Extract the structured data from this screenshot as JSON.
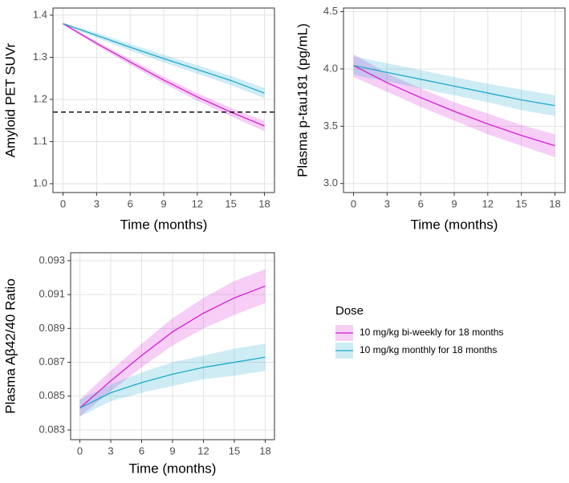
{
  "chart_data": [
    {
      "type": "line",
      "x_label": "Time (months)",
      "y_label": "Amyloid PET SUVr",
      "x": [
        0,
        3,
        6,
        9,
        12,
        15,
        18
      ],
      "xlim": [
        -0.9,
        18.9
      ],
      "xticks": [
        0,
        3,
        6,
        9,
        12,
        15,
        18
      ],
      "ylim": [
        0.979,
        1.417
      ],
      "yticks": [
        {
          "value": 1.0,
          "label": "1.0"
        },
        1.1,
        1.2,
        1.3,
        1.4
      ],
      "grid": true,
      "hline": 1.17,
      "series": [
        {
          "color": "#d41fd4",
          "values": [
            1.38,
            1.333,
            1.289,
            1.246,
            1.206,
            1.17,
            1.137
          ],
          "upper": [
            1.382,
            1.338,
            1.296,
            1.254,
            1.215,
            1.18,
            1.149
          ],
          "lower": [
            1.378,
            1.328,
            1.282,
            1.238,
            1.197,
            1.16,
            1.125
          ]
        },
        {
          "color": "#1fa9cc",
          "values": [
            1.38,
            1.352,
            1.324,
            1.297,
            1.271,
            1.245,
            1.215
          ],
          "upper": [
            1.382,
            1.358,
            1.332,
            1.306,
            1.281,
            1.256,
            1.227
          ],
          "lower": [
            1.378,
            1.346,
            1.316,
            1.288,
            1.261,
            1.234,
            1.203
          ]
        }
      ]
    },
    {
      "type": "line",
      "x_label": "Time (months)",
      "y_label": "Plasma p-tau181 (pg/mL)",
      "x": [
        0,
        3,
        6,
        9,
        12,
        15,
        18
      ],
      "xlim": [
        -0.9,
        18.9
      ],
      "xticks": [
        0,
        3,
        6,
        9,
        12,
        15,
        18
      ],
      "ylim": [
        2.921,
        4.532
      ],
      "yticks": [
        {
          "value": 3.0,
          "label": "3.0"
        },
        3.5,
        {
          "value": 4.0,
          "label": "4.0"
        },
        4.5
      ],
      "grid": true,
      "series": [
        {
          "color": "#d41fd4",
          "values": [
            4.03,
            3.88,
            3.75,
            3.63,
            3.52,
            3.42,
            3.33
          ],
          "upper": [
            4.13,
            3.96,
            3.83,
            3.71,
            3.61,
            3.51,
            3.43
          ],
          "lower": [
            3.93,
            3.8,
            3.67,
            3.55,
            3.43,
            3.33,
            3.23
          ]
        },
        {
          "color": "#1fa9cc",
          "values": [
            4.03,
            3.97,
            3.91,
            3.85,
            3.79,
            3.73,
            3.68
          ],
          "upper": [
            4.11,
            4.05,
            3.99,
            3.93,
            3.87,
            3.82,
            3.77
          ],
          "lower": [
            3.95,
            3.89,
            3.83,
            3.77,
            3.71,
            3.64,
            3.59
          ]
        }
      ]
    },
    {
      "type": "line",
      "x_label": "Time (months)",
      "y_label": "Plasma Aβ42/40 Ratio",
      "x": [
        0,
        3,
        6,
        9,
        12,
        15,
        18
      ],
      "xlim": [
        -0.9,
        18.9
      ],
      "xticks": [
        0,
        3,
        6,
        9,
        12,
        15,
        18
      ],
      "ylim": [
        0.08243,
        0.09347
      ],
      "yticks": [
        0.083,
        0.085,
        0.087,
        0.089,
        0.091,
        0.093
      ],
      "grid": true,
      "legend_title": "Dose",
      "legend": "right",
      "series": [
        {
          "name": "10 mg/kg bi-weekly for 18 months",
          "color": "#d41fd4",
          "values": [
            0.0843,
            0.0859,
            0.0874,
            0.0888,
            0.0899,
            0.0908,
            0.0915
          ],
          "upper": [
            0.0848,
            0.0865,
            0.0881,
            0.0896,
            0.0908,
            0.0918,
            0.0925
          ],
          "lower": [
            0.0838,
            0.0853,
            0.0867,
            0.088,
            0.089,
            0.0898,
            0.0905
          ]
        },
        {
          "name": "10 mg/kg monthly for 18 months",
          "color": "#1fa9cc",
          "values": [
            0.0843,
            0.0852,
            0.0858,
            0.0863,
            0.0867,
            0.087,
            0.0873
          ],
          "upper": [
            0.0848,
            0.0857,
            0.0864,
            0.087,
            0.0874,
            0.0878,
            0.0881
          ],
          "lower": [
            0.0838,
            0.0847,
            0.0852,
            0.0856,
            0.086,
            0.0862,
            0.0865
          ]
        }
      ]
    }
  ]
}
